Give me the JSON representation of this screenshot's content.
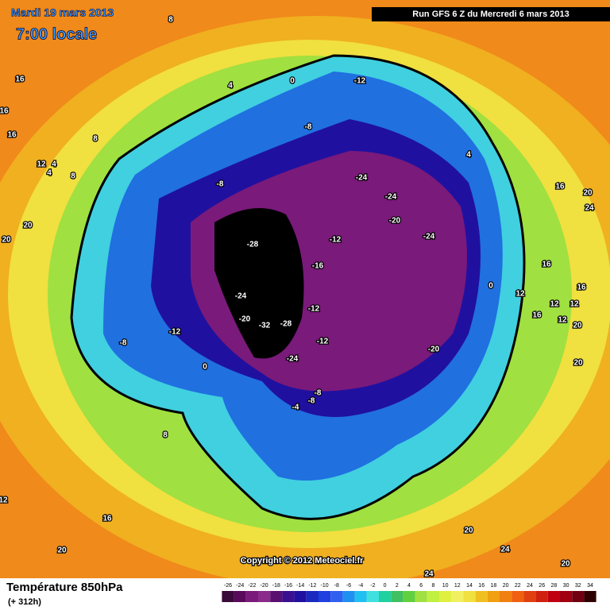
{
  "header": {
    "date": "Mardi 19 mars 2013",
    "time": "7:00 locale",
    "run": "Run GFS 6 Z du Mercredi 6 mars 2013"
  },
  "map": {
    "contour_labels": [
      "8",
      "16",
      "16",
      "16",
      "4",
      "0",
      "-12",
      "-8",
      "8",
      "12",
      "4",
      "4",
      "8",
      "4",
      "-8",
      "-24",
      "-24",
      "-20",
      "-24",
      "16",
      "20",
      "24",
      "20",
      "20",
      "-28",
      "-12",
      "-16",
      "16",
      "16",
      "12",
      "0",
      "-24",
      "-12",
      "12",
      "12",
      "16",
      "12",
      "20",
      "-20",
      "-32",
      "-28",
      "-12",
      "-12",
      "-8",
      "-20",
      "-24",
      "0",
      "20",
      "-8",
      "-8",
      "-4",
      "8",
      "12",
      "16",
      "20",
      "20",
      "24",
      "20",
      "24"
    ],
    "copyright": "Copyright © 2012 Meteociel.fr"
  },
  "footer": {
    "title": "Température 850hPa",
    "lead": "(+ 312h)"
  },
  "colorbar": {
    "ticks": [
      -26,
      -24,
      -22,
      -20,
      -18,
      -16,
      -14,
      -12,
      -10,
      -8,
      -6,
      -4,
      -2,
      0,
      2,
      4,
      6,
      8,
      10,
      12,
      14,
      16,
      18,
      20,
      22,
      24,
      26,
      28,
      30,
      32,
      34
    ],
    "colors": [
      "#3a0a3a",
      "#5a0a5a",
      "#7a1a7a",
      "#8a2a8a",
      "#5a1070",
      "#3a1090",
      "#2010a0",
      "#1a2ac0",
      "#2040e0",
      "#3060f0",
      "#2090f0",
      "#20c0f0",
      "#40e0e0",
      "#20d0a0",
      "#40c060",
      "#60d040",
      "#a0e040",
      "#c0f040",
      "#e0f040",
      "#f0f060",
      "#f0e040",
      "#f0c020",
      "#f0a010",
      "#f08010",
      "#f06010",
      "#e04010",
      "#d02010",
      "#c00010",
      "#a00010",
      "#700010",
      "#300000"
    ]
  }
}
